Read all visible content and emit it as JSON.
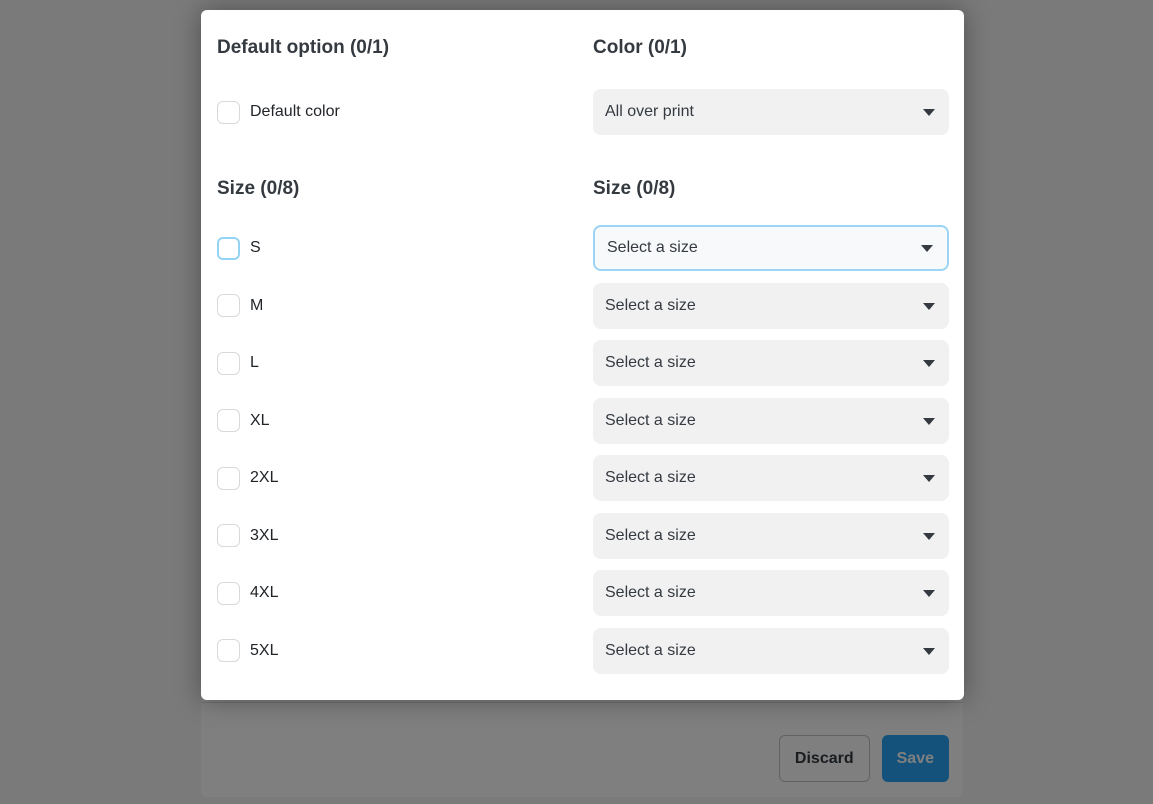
{
  "colors": {
    "accent_blue": "#29a5f9",
    "focus_border": "#93d4f5",
    "select_bg": "#f1f1f2",
    "backdrop": "rgba(0,0,0,0.5)"
  },
  "modal": {
    "left": {
      "default_option_heading": "Default option (0/1)",
      "default_options": [
        {
          "label": "Default color",
          "checked": false,
          "focused": false
        }
      ],
      "size_heading": "Size (0/8)",
      "sizes": [
        {
          "label": "S",
          "checked": false,
          "focused": true
        },
        {
          "label": "M",
          "checked": false,
          "focused": false
        },
        {
          "label": "L",
          "checked": false,
          "focused": false
        },
        {
          "label": "XL",
          "checked": false,
          "focused": false
        },
        {
          "label": "2XL",
          "checked": false,
          "focused": false
        },
        {
          "label": "3XL",
          "checked": false,
          "focused": false
        },
        {
          "label": "4XL",
          "checked": false,
          "focused": false
        },
        {
          "label": "5XL",
          "checked": false,
          "focused": false
        }
      ]
    },
    "right": {
      "color_heading": "Color (0/1)",
      "color_select": {
        "value": "All over print"
      },
      "size_heading": "Size (0/8)",
      "size_selects": [
        {
          "placeholder": "Select a size",
          "focused": true
        },
        {
          "placeholder": "Select a size",
          "focused": false
        },
        {
          "placeholder": "Select a size",
          "focused": false
        },
        {
          "placeholder": "Select a size",
          "focused": false
        },
        {
          "placeholder": "Select a size",
          "focused": false
        },
        {
          "placeholder": "Select a size",
          "focused": false
        },
        {
          "placeholder": "Select a size",
          "focused": false
        },
        {
          "placeholder": "Select a size",
          "focused": false
        }
      ]
    }
  },
  "footer": {
    "discard": "Discard",
    "save": "Save"
  }
}
